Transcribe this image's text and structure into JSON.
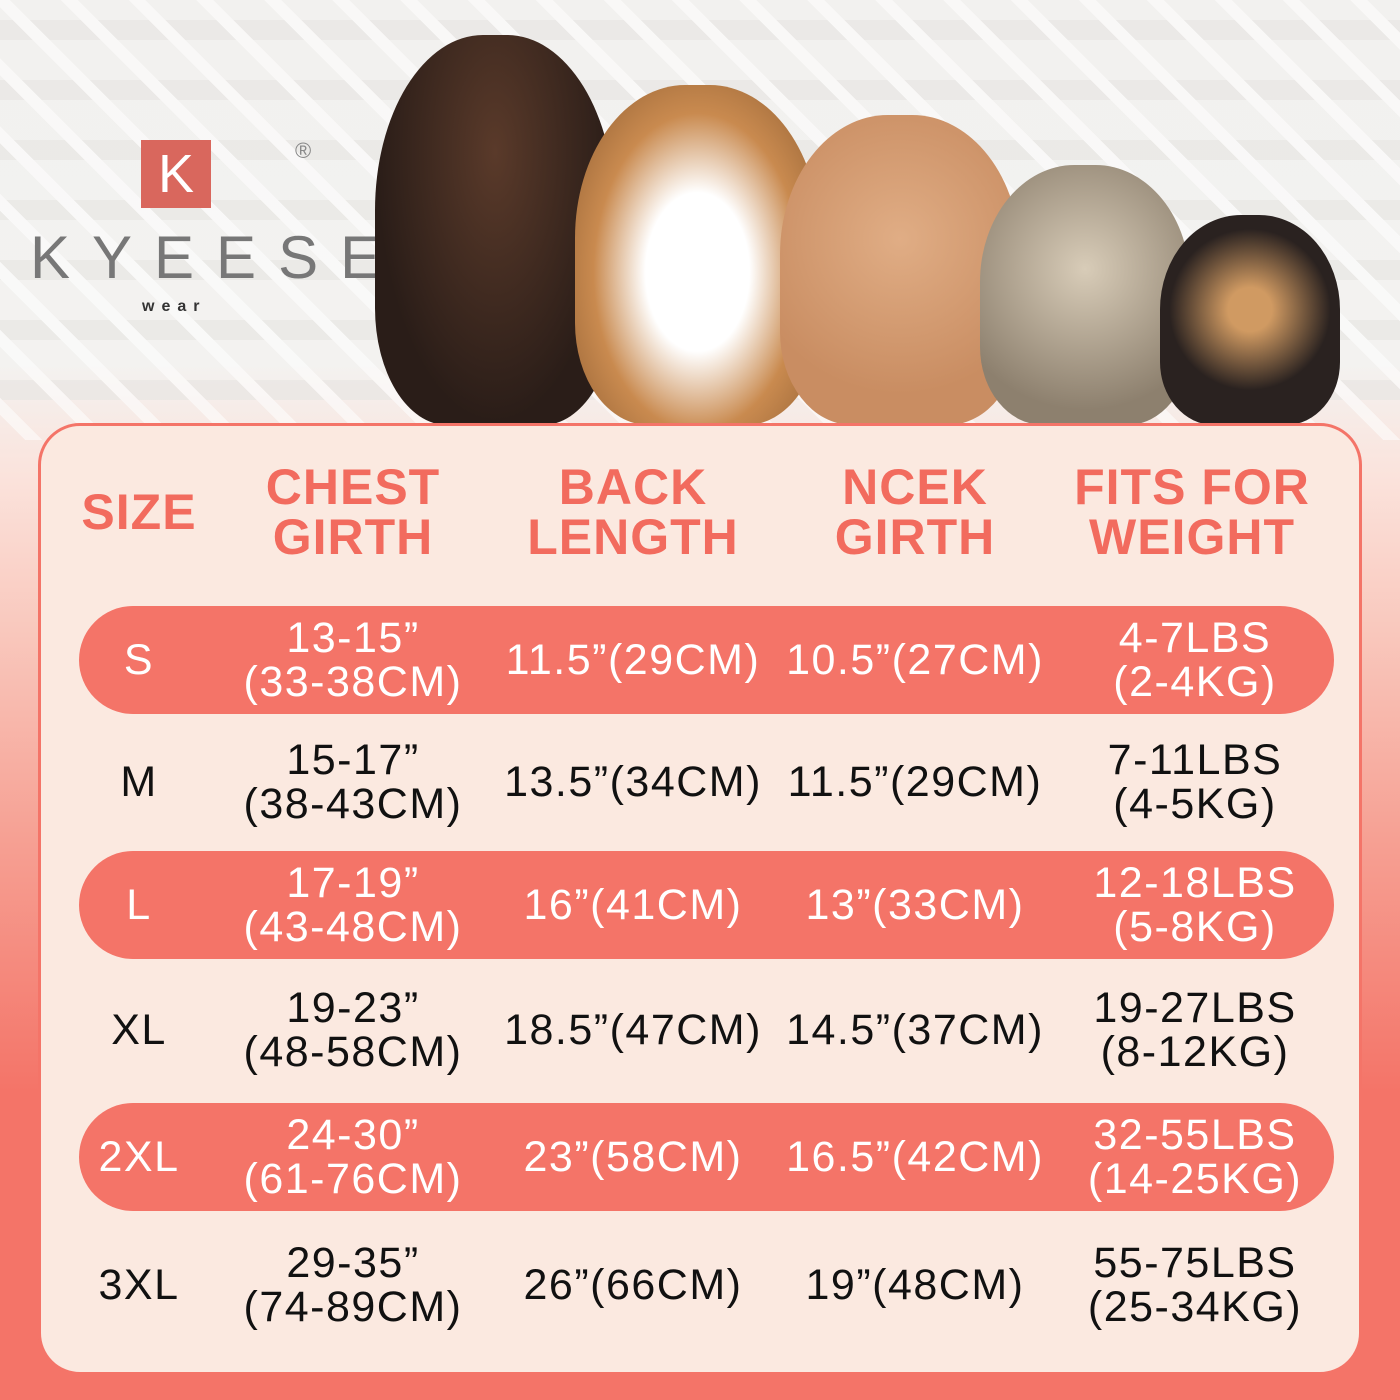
{
  "brand": {
    "logo_letter": "K",
    "name": "KYEESE",
    "tagline": "wear",
    "registered": "®"
  },
  "colors": {
    "accent": "#f26b5e",
    "band": "#f47468",
    "panel": "#fbe9e0"
  },
  "headers": [
    "SIZE",
    [
      "CHEST",
      "GIRTH"
    ],
    [
      "BACK",
      "LENGTH"
    ],
    [
      "NCEK",
      "GIRTH"
    ],
    [
      "FITS FOR",
      "WEIGHT"
    ]
  ],
  "rows": [
    {
      "size": "S",
      "chest": [
        "13-15”",
        "(33-38CM)"
      ],
      "back": "11.5”(29CM)",
      "neck": "10.5”(27CM)",
      "weight": [
        "4-7LBS",
        "(2-4KG)"
      ],
      "highlight": true
    },
    {
      "size": "M",
      "chest": [
        "15-17”",
        "(38-43CM)"
      ],
      "back": "13.5”(34CM)",
      "neck": "11.5”(29CM)",
      "weight": [
        "7-11LBS",
        "(4-5KG)"
      ],
      "highlight": false
    },
    {
      "size": "L",
      "chest": [
        "17-19”",
        "(43-48CM)"
      ],
      "back": "16”(41CM)",
      "neck": "13”(33CM)",
      "weight": [
        "12-18LBS",
        "(5-8KG)"
      ],
      "highlight": true
    },
    {
      "size": "XL",
      "chest": [
        "19-23”",
        "(48-58CM)"
      ],
      "back": "18.5”(47CM)",
      "neck": "14.5”(37CM)",
      "weight": [
        "19-27LBS",
        "(8-12KG)"
      ],
      "highlight": false
    },
    {
      "size": "2XL",
      "chest": [
        "24-30”",
        "(61-76CM)"
      ],
      "back": "23”(58CM)",
      "neck": "16.5”(42CM)",
      "weight": [
        "32-55LBS",
        "(14-25KG)"
      ],
      "highlight": true
    },
    {
      "size": "3XL",
      "chest": [
        "29-35”",
        "(74-89CM)"
      ],
      "back": "26”(66CM)",
      "neck": "19”(48CM)",
      "weight": [
        "55-75LBS",
        "(25-34KG)"
      ],
      "highlight": false
    }
  ],
  "images": [
    "doberman",
    "beagle",
    "poodle",
    "schnauzer",
    "chihuahua"
  ]
}
